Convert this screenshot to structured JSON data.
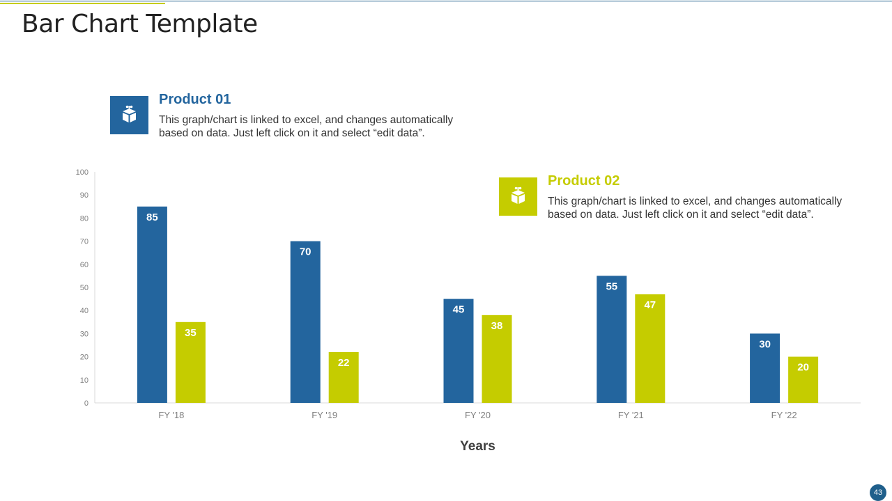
{
  "slide": {
    "title": "Bar Chart Template",
    "page_number": "43"
  },
  "colors": {
    "product_01": "#23659e",
    "product_02": "#c5cc00",
    "axis": "#d9d9d9",
    "tick_text": "#7f7f7f",
    "axis_title": "#404040"
  },
  "legend": [
    {
      "name": "Product 01",
      "icon": "gift-box-icon",
      "description": "This graph/chart is linked to excel, and changes automatically based on data. Just left click on it and select “edit data”."
    },
    {
      "name": "Product 02",
      "icon": "gift-box-icon",
      "description": "This graph/chart is linked to excel, and changes automatically based on data. Just left click on it and select “edit data”."
    }
  ],
  "chart_data": {
    "type": "bar",
    "title": "",
    "xlabel": "Years",
    "ylabel": "",
    "categories": [
      "FY '18",
      "FY '19",
      "FY '20",
      "FY '21",
      "FY '22"
    ],
    "series": [
      {
        "name": "Product 01",
        "values": [
          85,
          70,
          45,
          55,
          30
        ]
      },
      {
        "name": "Product 02",
        "values": [
          35,
          22,
          38,
          47,
          20
        ]
      }
    ],
    "ylim": [
      0,
      100
    ],
    "yticks": [
      0,
      10,
      20,
      30,
      40,
      50,
      60,
      70,
      80,
      90,
      100
    ],
    "grid": false,
    "legend_position": "top"
  }
}
